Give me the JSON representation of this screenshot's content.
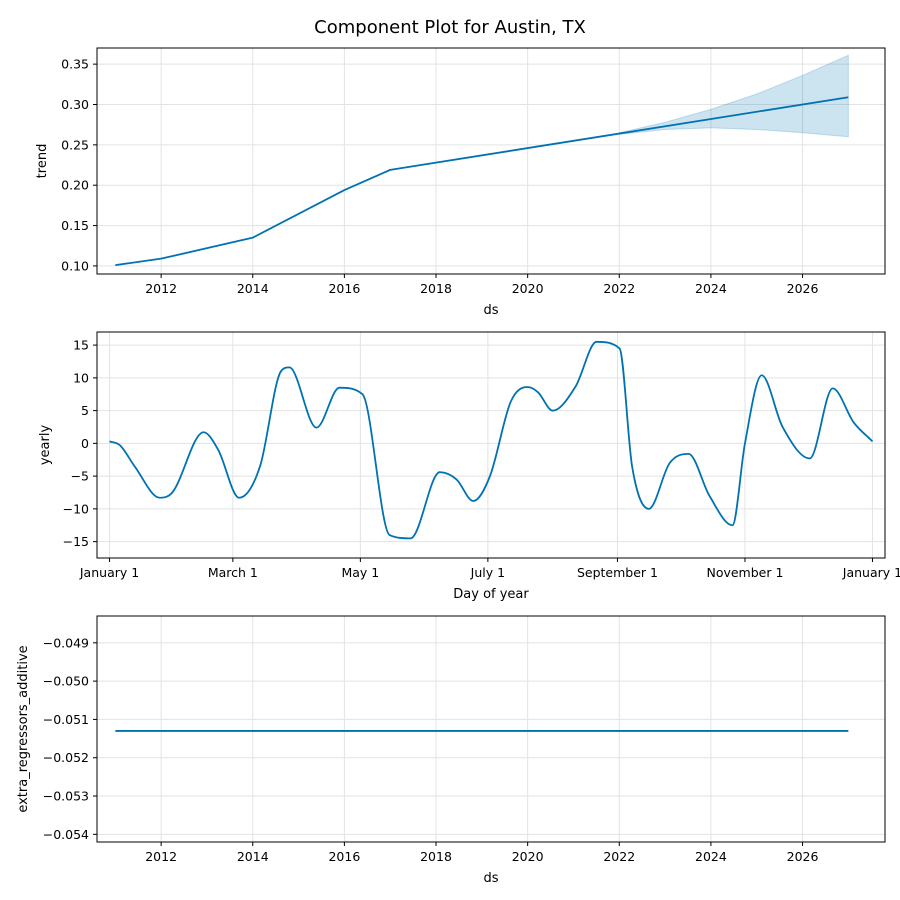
{
  "title": "Component Plot for Austin, TX",
  "chart_data": [
    {
      "type": "line",
      "xlabel": "ds",
      "ylabel": "trend",
      "xlim": [
        2010.6,
        2027.8
      ],
      "ylim": [
        0.09,
        0.37
      ],
      "xticks": [
        2012,
        2014,
        2016,
        2018,
        2020,
        2022,
        2024,
        2026
      ],
      "xtick_labels": [
        "2012",
        "2014",
        "2016",
        "2018",
        "2020",
        "2022",
        "2024",
        "2026"
      ],
      "yticks": [
        0.1,
        0.15,
        0.2,
        0.25,
        0.3,
        0.35
      ],
      "ytick_labels": [
        "0.10",
        "0.15",
        "0.20",
        "0.25",
        "0.30",
        "0.35"
      ],
      "grid": true,
      "series": [
        {
          "x": [
            2011,
            2012,
            2014,
            2016,
            2017,
            2022,
            2027
          ],
          "y": [
            0.101,
            0.109,
            0.135,
            0.194,
            0.219,
            0.264,
            0.309
          ]
        }
      ],
      "uncertainty": {
        "x": [
          2022,
          2023,
          2024,
          2025,
          2026,
          2027
        ],
        "upper": [
          0.265,
          0.278,
          0.294,
          0.313,
          0.336,
          0.361
        ],
        "lower": [
          0.263,
          0.269,
          0.271,
          0.269,
          0.265,
          0.26
        ]
      },
      "color": "#0072b2"
    },
    {
      "type": "line",
      "xlabel": "Day of year",
      "ylabel": "yearly",
      "xlim": [
        -6,
        371
      ],
      "ylim": [
        -17.5,
        17.0
      ],
      "xticks": [
        0,
        59,
        120,
        181,
        243,
        304,
        365
      ],
      "xtick_labels": [
        "January 1",
        "March 1",
        "May 1",
        "July 1",
        "September 1",
        "November 1",
        "January 1"
      ],
      "yticks": [
        -15,
        -10,
        -5,
        0,
        5,
        10,
        15
      ],
      "ytick_labels": [
        "−15",
        "−10",
        "−5",
        "0",
        "5",
        "10",
        "15"
      ],
      "grid": true,
      "series": [
        {
          "x": [
            0,
            5,
            12,
            24,
            30,
            45,
            52,
            62,
            72,
            82,
            86,
            99,
            110,
            121,
            134,
            144,
            158,
            166,
            174,
            182,
            192,
            200,
            205,
            212,
            223,
            233,
            244,
            250,
            258,
            268,
            277,
            287,
            298,
            304,
            312,
            322,
            335,
            346,
            356,
            365
          ],
          "y": [
            0.3,
            -0.3,
            -3.5,
            -8.3,
            -7.5,
            1.7,
            -1.0,
            -8.3,
            -3.5,
            11.0,
            11.6,
            2.4,
            8.5,
            7.5,
            -14.0,
            -14.5,
            -4.4,
            -5.5,
            -8.8,
            -5.0,
            6.4,
            8.6,
            7.8,
            5.0,
            8.7,
            15.5,
            14.5,
            -3.5,
            -10.0,
            -3.0,
            -1.6,
            -8.0,
            -12.5,
            0.0,
            10.4,
            2.5,
            -2.3,
            8.4,
            3.2,
            0.3
          ]
        }
      ],
      "color": "#0072b2"
    },
    {
      "type": "line",
      "xlabel": "ds",
      "ylabel": "extra_regressors_additive",
      "xlim": [
        2010.6,
        2027.8
      ],
      "ylim": [
        -0.0542,
        -0.0483
      ],
      "xticks": [
        2012,
        2014,
        2016,
        2018,
        2020,
        2022,
        2024,
        2026
      ],
      "xtick_labels": [
        "2012",
        "2014",
        "2016",
        "2018",
        "2020",
        "2022",
        "2024",
        "2026"
      ],
      "yticks": [
        -0.054,
        -0.053,
        -0.052,
        -0.051,
        -0.05,
        -0.049
      ],
      "ytick_labels": [
        "−0.054",
        "−0.053",
        "−0.052",
        "−0.051",
        "−0.050",
        "−0.049"
      ],
      "grid": true,
      "series": [
        {
          "x": [
            2011,
            2027
          ],
          "y": [
            -0.0513,
            -0.0513
          ]
        }
      ],
      "color": "#0072b2"
    }
  ]
}
